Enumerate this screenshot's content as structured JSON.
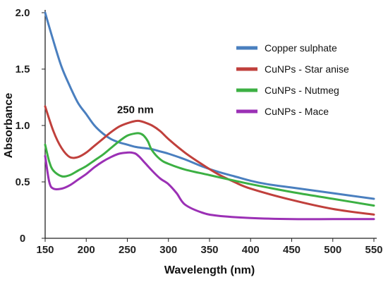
{
  "chart_data": {
    "type": "line",
    "xlabel": "Wavelength (nm)",
    "ylabel": "Absorbance",
    "xlim": [
      150,
      550
    ],
    "ylim": [
      0,
      2.0
    ],
    "x_ticks": [
      150,
      200,
      250,
      300,
      350,
      400,
      450,
      500,
      550
    ],
    "y_ticks": [
      {
        "value": 0,
        "label": "0"
      },
      {
        "value": 0.5,
        "label": "0.5"
      },
      {
        "value": 1.0,
        "label": "1.0"
      },
      {
        "value": 1.5,
        "label": "1.5"
      },
      {
        "value": 2.0,
        "label": "2.0"
      }
    ],
    "grid": false,
    "legend_position": "top-right",
    "annotations": [
      {
        "text": "250 nm",
        "x": 265,
        "y": 1.11
      }
    ],
    "series": [
      {
        "name": "Copper sulphate",
        "color": "#4a7fbf",
        "x": [
          150,
          160,
          170,
          180,
          190,
          200,
          210,
          220,
          230,
          240,
          250,
          260,
          270,
          280,
          290,
          300,
          320,
          340,
          360,
          380,
          400,
          420,
          450,
          500,
          550
        ],
        "y": [
          2.0,
          1.75,
          1.52,
          1.35,
          1.2,
          1.1,
          1.0,
          0.93,
          0.88,
          0.85,
          0.83,
          0.81,
          0.8,
          0.79,
          0.77,
          0.75,
          0.7,
          0.64,
          0.59,
          0.55,
          0.51,
          0.48,
          0.45,
          0.4,
          0.35
        ]
      },
      {
        "name": "CuNPs - Star anise",
        "color": "#c0403c",
        "x": [
          150,
          160,
          170,
          180,
          190,
          200,
          210,
          220,
          230,
          240,
          250,
          260,
          265,
          270,
          280,
          290,
          300,
          320,
          340,
          360,
          380,
          400,
          450,
          500,
          550
        ],
        "y": [
          1.17,
          0.95,
          0.8,
          0.72,
          0.72,
          0.76,
          0.82,
          0.88,
          0.94,
          0.99,
          1.02,
          1.04,
          1.04,
          1.03,
          1.0,
          0.95,
          0.88,
          0.76,
          0.66,
          0.57,
          0.5,
          0.44,
          0.34,
          0.26,
          0.21
        ]
      },
      {
        "name": "CuNPs - Nutmeg",
        "color": "#3cb043",
        "x": [
          150,
          155,
          160,
          170,
          180,
          190,
          200,
          210,
          220,
          230,
          240,
          250,
          260,
          265,
          270,
          275,
          280,
          290,
          300,
          320,
          350,
          400,
          450,
          500,
          550
        ],
        "y": [
          0.83,
          0.68,
          0.6,
          0.55,
          0.56,
          0.6,
          0.64,
          0.69,
          0.74,
          0.8,
          0.86,
          0.91,
          0.93,
          0.93,
          0.91,
          0.86,
          0.78,
          0.7,
          0.66,
          0.61,
          0.56,
          0.48,
          0.41,
          0.35,
          0.29
        ]
      },
      {
        "name": "CuNPs - Mace",
        "color": "#9b30b5",
        "x": [
          150,
          155,
          160,
          170,
          180,
          190,
          200,
          210,
          220,
          230,
          240,
          250,
          255,
          260,
          265,
          270,
          280,
          290,
          300,
          310,
          320,
          340,
          360,
          400,
          450,
          500,
          550
        ],
        "y": [
          0.73,
          0.5,
          0.44,
          0.44,
          0.47,
          0.52,
          0.57,
          0.63,
          0.68,
          0.72,
          0.75,
          0.76,
          0.76,
          0.75,
          0.72,
          0.68,
          0.6,
          0.53,
          0.48,
          0.4,
          0.3,
          0.23,
          0.2,
          0.18,
          0.17,
          0.17,
          0.17
        ]
      }
    ]
  }
}
